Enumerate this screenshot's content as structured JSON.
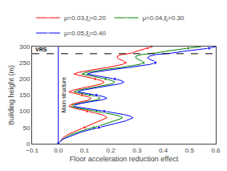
{
  "chart_data": {
    "type": "line",
    "xlabel": "Floor acceleration reduction effect",
    "ylabel": "Building height (m)",
    "xlim": [
      -0.1,
      0.6
    ],
    "ylim": [
      0,
      300
    ],
    "xticks": [
      {
        "value": -0.1,
        "label": "−0.1"
      },
      {
        "value": 0.0,
        "label": "0.0"
      },
      0.1,
      0.2,
      0.3,
      0.4,
      0.5,
      0.6
    ],
    "yticks": [
      0,
      50,
      100,
      150,
      200,
      250,
      300
    ],
    "grid": false,
    "legend": "top",
    "hline": {
      "y": 278,
      "label": "VRS",
      "line_style": "dashed"
    },
    "vline": {
      "x": 0.0,
      "color": "blue"
    },
    "annotations": [
      "Main structure"
    ],
    "series": [
      {
        "name": "μ=0.03,ξⱼ=0.20",
        "color": "red",
        "marker": "circle",
        "x": [
          0.0,
          0.005,
          0.01,
          0.015,
          0.02,
          0.03,
          0.04,
          0.055,
          0.07,
          0.085,
          0.1,
          0.115,
          0.13,
          0.145,
          0.16,
          0.175,
          0.185,
          0.18,
          0.165,
          0.14,
          0.11,
          0.085,
          0.06,
          0.04,
          0.045,
          0.065,
          0.09,
          0.115,
          0.125,
          0.115,
          0.09,
          0.06,
          0.04,
          0.055,
          0.08,
          0.11,
          0.14,
          0.165,
          0.175,
          0.165,
          0.14,
          0.11,
          0.08,
          0.06,
          0.075,
          0.105,
          0.145,
          0.185,
          0.22,
          0.245,
          0.255,
          0.25,
          0.235,
          0.225,
          0.225,
          0.24,
          0.265,
          0.28,
          0.295,
          0.315,
          0.34,
          0.36
        ],
        "y": [
          0,
          5,
          10,
          15,
          20,
          25,
          30,
          35,
          40,
          45,
          50,
          55,
          60,
          65,
          70,
          75,
          80,
          85,
          90,
          95,
          100,
          105,
          110,
          115,
          120,
          125,
          130,
          135,
          140,
          145,
          150,
          155,
          160,
          165,
          170,
          175,
          180,
          185,
          190,
          195,
          200,
          205,
          210,
          215,
          220,
          225,
          230,
          235,
          240,
          245,
          250,
          255,
          260,
          265,
          270,
          275,
          278,
          280,
          285,
          290,
          295,
          300
        ]
      },
      {
        "name": "μ=0.04,ξⱼ=0.30",
        "color": "green",
        "marker": "circle",
        "x": [
          0.0,
          0.005,
          0.01,
          0.02,
          0.03,
          0.04,
          0.055,
          0.07,
          0.09,
          0.11,
          0.135,
          0.155,
          0.175,
          0.195,
          0.215,
          0.23,
          0.245,
          0.235,
          0.21,
          0.18,
          0.145,
          0.11,
          0.075,
          0.05,
          0.055,
          0.08,
          0.11,
          0.145,
          0.16,
          0.15,
          0.12,
          0.085,
          0.06,
          0.075,
          0.105,
          0.14,
          0.175,
          0.205,
          0.215,
          0.205,
          0.18,
          0.15,
          0.115,
          0.09,
          0.105,
          0.14,
          0.185,
          0.235,
          0.275,
          0.31,
          0.325,
          0.32,
          0.305,
          0.295,
          0.295,
          0.315,
          0.345,
          0.37,
          0.405,
          0.445,
          0.495,
          0.545
        ],
        "y": [
          0,
          5,
          10,
          15,
          20,
          25,
          30,
          35,
          40,
          45,
          50,
          55,
          60,
          65,
          70,
          75,
          80,
          85,
          90,
          95,
          100,
          105,
          110,
          115,
          120,
          125,
          130,
          135,
          140,
          145,
          150,
          155,
          160,
          165,
          170,
          175,
          180,
          185,
          190,
          195,
          200,
          205,
          210,
          215,
          220,
          225,
          230,
          235,
          240,
          245,
          250,
          255,
          260,
          265,
          270,
          275,
          278,
          280,
          285,
          290,
          295,
          300
        ]
      },
      {
        "name": "μ=0.05,ξⱼ=0.40",
        "color": "blue",
        "marker": "square",
        "x": [
          0.0,
          0.005,
          0.01,
          0.02,
          0.035,
          0.05,
          0.065,
          0.085,
          0.105,
          0.13,
          0.155,
          0.18,
          0.205,
          0.23,
          0.255,
          0.27,
          0.285,
          0.275,
          0.25,
          0.215,
          0.175,
          0.135,
          0.09,
          0.06,
          0.065,
          0.09,
          0.125,
          0.165,
          0.185,
          0.175,
          0.145,
          0.105,
          0.075,
          0.09,
          0.125,
          0.165,
          0.205,
          0.235,
          0.25,
          0.24,
          0.215,
          0.18,
          0.14,
          0.11,
          0.13,
          0.17,
          0.215,
          0.265,
          0.31,
          0.35,
          0.37,
          0.365,
          0.35,
          0.34,
          0.345,
          0.37,
          0.405,
          0.435,
          0.475,
          0.525,
          0.575,
          0.6
        ],
        "y": [
          0,
          5,
          10,
          15,
          20,
          25,
          30,
          35,
          40,
          45,
          50,
          55,
          60,
          65,
          70,
          75,
          80,
          85,
          90,
          95,
          100,
          105,
          110,
          115,
          120,
          125,
          130,
          135,
          140,
          145,
          150,
          155,
          160,
          165,
          170,
          175,
          180,
          185,
          190,
          195,
          200,
          205,
          210,
          215,
          220,
          225,
          230,
          235,
          240,
          245,
          250,
          255,
          260,
          265,
          270,
          275,
          278,
          280,
          285,
          290,
          295,
          300
        ]
      }
    ]
  }
}
